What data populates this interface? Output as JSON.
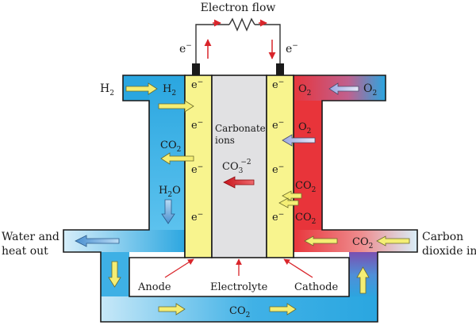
{
  "circuit": {
    "title": "Electron flow",
    "electron_left": "e",
    "electron_right": "e",
    "electron_sign": "−"
  },
  "inputs": {
    "fuel": {
      "base": "H",
      "sub": "2"
    },
    "oxidant": {
      "base": "O",
      "sub": "2"
    },
    "carbon_in_line1": "Carbon",
    "carbon_in_line2": "dioxide in"
  },
  "outputs": {
    "water_line1": "Water and",
    "water_line2": "heat out"
  },
  "anode_channel": {
    "h2": {
      "base": "H",
      "sub": "2"
    },
    "co2": {
      "base": "CO",
      "sub": "2"
    },
    "h2o": {
      "base": "H",
      "sub": "2",
      "tail": "O"
    }
  },
  "cathode_channel": {
    "o2_top": {
      "base": "O",
      "sub": "2"
    },
    "o2_mid": {
      "base": "O",
      "sub": "2"
    },
    "co2_a": {
      "base": "CO",
      "sub": "2"
    },
    "co2_b": {
      "base": "CO",
      "sub": "2"
    },
    "co2_inlet": {
      "base": "CO",
      "sub": "2"
    }
  },
  "electrolyte": {
    "line1": "Carbonate",
    "line2": "ions",
    "ion": {
      "base": "CO",
      "sub": "3",
      "sup": "−2"
    }
  },
  "electrode_electron": "e",
  "electrode_electron_sign": "−",
  "bottom_channel": {
    "co2": {
      "base": "CO",
      "sub": "2"
    }
  },
  "labels": {
    "anode": "Anode",
    "electrolyte": "Electrolyte",
    "cathode": "Cathode"
  },
  "colors": {
    "anode_gas": "#2aa6e0",
    "cathode_gas": "#e8343a",
    "electrode": "#f8f48e",
    "electrolyte": "#e1e1e3",
    "arrow_yellow": "#f4ee74",
    "arrow_red": "#d9252b",
    "wire": "#333333"
  }
}
